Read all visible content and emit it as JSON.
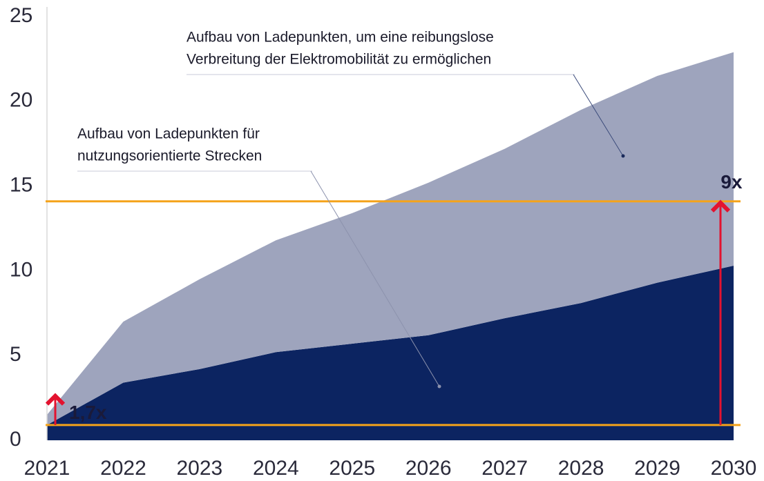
{
  "chart_data": {
    "type": "stacked_area",
    "categories": [
      "2021",
      "2022",
      "2023",
      "2024",
      "2025",
      "2026",
      "2027",
      "2028",
      "2029",
      "2030"
    ],
    "series": [
      {
        "color": "#0c2461",
        "values": [
          0.9,
          3.4,
          4.2,
          5.2,
          5.7,
          6.2,
          7.2,
          8.1,
          9.3,
          10.3
        ]
      },
      {
        "color": "#9ea4bd",
        "values": [
          0.6,
          3.6,
          5.3,
          6.6,
          7.7,
          9.0,
          10.0,
          11.4,
          12.2,
          12.6
        ]
      }
    ],
    "ylim": [
      0,
      25
    ],
    "yticks": [
      0,
      5,
      10,
      15,
      20,
      25
    ],
    "reference_lines": {
      "color": "#f5a31a",
      "values": [
        0.9,
        14.1
      ]
    },
    "arrows": [
      {
        "label": "1,7x",
        "category": "2021",
        "from": 0.9,
        "to": 2.7
      },
      {
        "label": "9x",
        "category": "2030",
        "from": 0.9,
        "to": 14.1
      }
    ],
    "arrow_color": "#e3122f",
    "annotations": [
      {
        "lines": [
          "Aufbau von Ladepunkten, um eine reibungslose",
          "Verbreitung der Elektromobilität zu ermöglichen"
        ],
        "series": 1
      },
      {
        "lines": [
          "Aufbau von Ladepunkten für",
          "nutzungsorientierte Strecken"
        ],
        "series": 0
      }
    ]
  }
}
